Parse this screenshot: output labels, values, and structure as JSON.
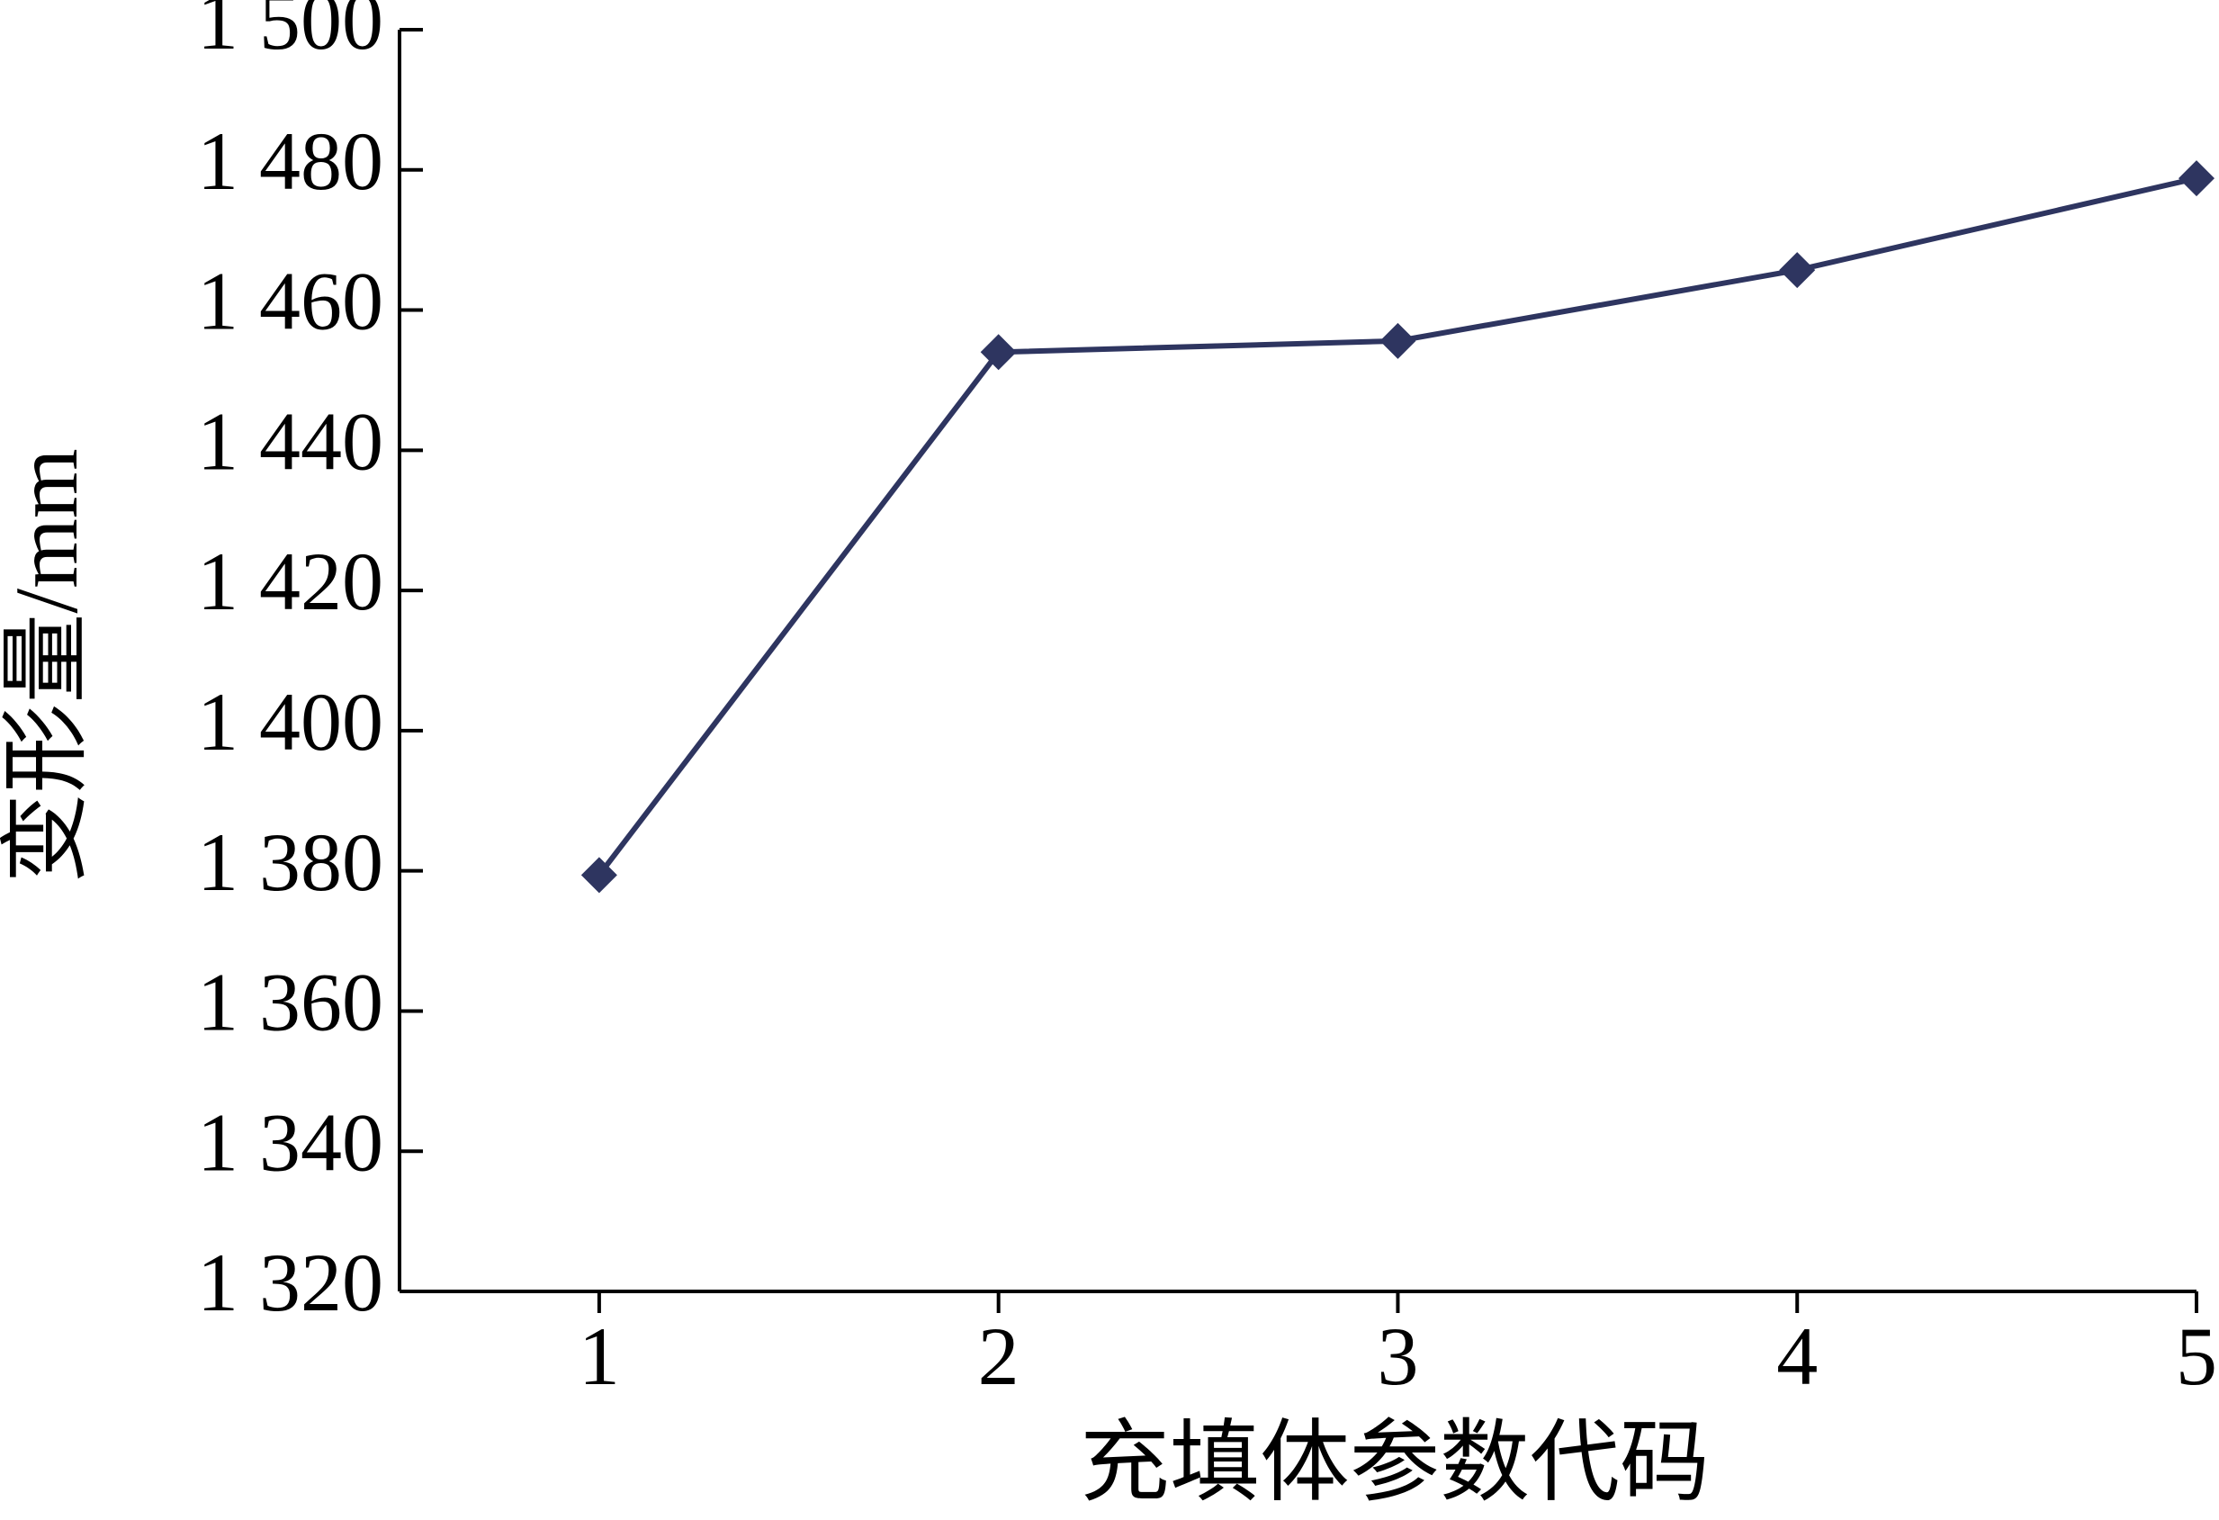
{
  "chart_data": {
    "type": "line",
    "x_label": "充填体参数代码",
    "y_label": "变形量/mm",
    "x": [
      1,
      2,
      3,
      4,
      5
    ],
    "series": [
      {
        "color": "#2e3560",
        "values": [
          1379.4,
          1454,
          1455.6,
          1465.7,
          1478.8
        ]
      }
    ],
    "xlim": [
      0.5,
      5
    ],
    "xticks": [
      1,
      2,
      3,
      4,
      5
    ],
    "ylim": [
      1320,
      1500
    ],
    "yticks": [
      {
        "value": 1320,
        "label": "1 320"
      },
      {
        "value": 1340,
        "label": "1 340"
      },
      {
        "value": 1360,
        "label": "1 360"
      },
      {
        "value": 1380,
        "label": "1 380"
      },
      {
        "value": 1400,
        "label": "1 400"
      },
      {
        "value": 1420,
        "label": "1 420"
      },
      {
        "value": 1440,
        "label": "1 440"
      },
      {
        "value": 1460,
        "label": "1 460"
      },
      {
        "value": 1480,
        "label": "1 480"
      },
      {
        "value": 1500,
        "label": "1 500"
      }
    ],
    "marker": "diamond"
  }
}
